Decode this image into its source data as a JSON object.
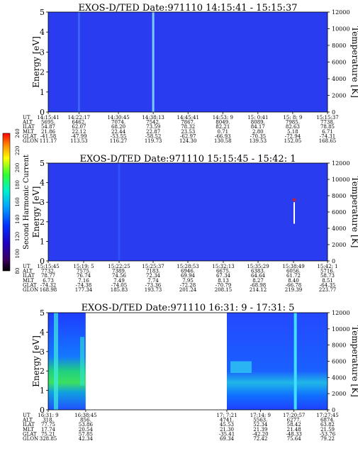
{
  "chart_data": [
    {
      "type": "heatmap",
      "title": "EXOS-D/TED   Date:971110   14:15:41 - 15:15:37",
      "ylabel": "Energy [eV]",
      "ylabel_right": "Temperature [K]",
      "ylim": [
        0,
        5
      ],
      "yticks": [
        "0",
        "1",
        "2",
        "3",
        "4",
        "5"
      ],
      "ylim_right": [
        0,
        12000
      ],
      "yticks_right": [
        "0",
        "2000",
        "4000",
        "6000",
        "8000",
        "10000",
        "12000"
      ],
      "row_labels": [
        "UT",
        "ALT",
        "ILAT",
        "MLT",
        "GLAT",
        "GLON"
      ],
      "columns": [
        [
          "14:15:41",
          "5695.",
          "54.87",
          "21.86",
          "-41.58",
          "111.17"
        ],
        [
          "14:22:17",
          "6462.",
          "62.07",
          "22.12",
          "-47.99",
          "113.53"
        ],
        [
          "14:30:45",
          "7074.",
          "68.20",
          "22.44",
          "-53.55",
          "116.27"
        ],
        [
          "14:38:13",
          "7542.",
          "73.59",
          "22.87",
          "-58.52",
          "119.73"
        ],
        [
          "14:45:41",
          "7867.",
          "78.32",
          "23.53",
          "-62.97",
          "124.30"
        ],
        [
          "14:53: 9",
          "8049.",
          "82.21",
          "0.71",
          "-66.93",
          "130.58"
        ],
        [
          "15: 0:41",
          "8089.",
          "84.17",
          "2.80",
          "-70.35",
          "139.53"
        ],
        [
          "15: 8: 9",
          "7985.",
          "82.63",
          "5.18",
          "-72.94",
          "152.05"
        ],
        [
          "15:15:37",
          "7738.",
          "78.85",
          "6.71",
          "-74.31",
          "168.65"
        ]
      ],
      "features": [
        {
          "kind": "vertical_stripe",
          "ut": "14:38:13",
          "color": "#8ee0ff"
        },
        {
          "kind": "vertical_stripe",
          "ut": "14:22:17",
          "color": "#3f6bff"
        }
      ]
    },
    {
      "type": "heatmap",
      "title": "EXOS-D/TED   Date:971110   15:15:45 - 15:42: 1",
      "ylabel": "Energy [eV]",
      "ylabel_right": "Temperature [K]",
      "ylim": [
        0,
        5
      ],
      "yticks": [
        "0",
        "1",
        "2",
        "3",
        "4",
        "5"
      ],
      "ylim_right": [
        0,
        12000
      ],
      "yticks_right": [
        "0",
        "2000",
        "4000",
        "6000",
        "8000",
        "10000",
        "12000"
      ],
      "row_labels": [
        "UT",
        "ALT",
        "ILAT",
        "MLT",
        "GLAT",
        "GLON"
      ],
      "columns": [
        [
          "15:15:45",
          "7732.",
          "78.77",
          "6.73",
          "-74.32",
          "168.98"
        ],
        [
          "15:19: 5",
          "7575.",
          "76.74",
          "7.16",
          "-74.38",
          "177.34"
        ],
        [
          "15:22:25",
          "7389.",
          "74.56",
          "7.49",
          "-74.05",
          "185.83"
        ],
        [
          "15:25:37",
          "7183.",
          "72.34",
          "7.74",
          "-73.36",
          "193.73"
        ],
        [
          "15:28:53",
          "6946.",
          "69.94",
          "7.95",
          "-72.28",
          "201.24"
        ],
        [
          "15:32:13",
          "6675.",
          "67.34",
          "8.13",
          "-70.79",
          "208.15"
        ],
        [
          "15:35:29",
          "6383.",
          "64.64",
          "8.27",
          "-68.98",
          "214.12"
        ],
        [
          "15:38:49",
          "6056.",
          "61.72",
          "8.40",
          "-66.78",
          "219.39"
        ],
        [
          "15:42: 1",
          "5716.",
          "58.73",
          "8.51",
          "-64.35",
          "223.77"
        ]
      ],
      "features": [
        {
          "kind": "vertical_stripe",
          "ut": "15:22:25",
          "color": "#2f55ff"
        },
        {
          "kind": "spike",
          "ut": "15:38:49",
          "color": "#ffffff"
        }
      ]
    },
    {
      "type": "heatmap",
      "title": "EXOS-D/TED   Date:971110   16:31: 9 - 17:31: 5",
      "ylabel": "Energy [eV]",
      "ylabel_right": "Temperature [K]",
      "ylim": [
        0,
        5
      ],
      "yticks": [
        "0",
        "1",
        "2",
        "3",
        "4",
        "5"
      ],
      "ylim_right": [
        0,
        12000
      ],
      "yticks_right": [
        "0",
        "2000",
        "4000",
        "6000",
        "8000",
        "10000",
        "12000"
      ],
      "row_labels": [
        "UT",
        "ALT",
        "ILAT",
        "MLT",
        "GLAT",
        "GLON"
      ],
      "columns": [
        [
          "16:31: 9",
          "318.",
          "77.75",
          "17.74",
          "75.21",
          "328.85"
        ],
        [
          "16:38:45",
          "856.",
          "53.86",
          "20.54",
          "57.85",
          "42.34"
        ],
        [
          "17: 7:21",
          "4741.",
          "45.53",
          "21.30",
          "-35.41",
          "69.34"
        ],
        [
          "17:14: 9",
          "5563.",
          "52.34",
          "21.39",
          "-42.20",
          "72.42"
        ],
        [
          "17:20:57",
          "6277.",
          "58.42",
          "21.48",
          "-48.33",
          "75.64"
        ],
        [
          "17:27:45",
          "6874.",
          "63.82",
          "21.59",
          "-53.76",
          "79.22"
        ]
      ],
      "data_gap": [
        "16:38:45",
        "17: 7:21"
      ]
    }
  ],
  "colorbar": {
    "label": "Second Harmonic Current",
    "ticks": [
      "80",
      "100",
      "120",
      "140",
      "160",
      "180",
      "200",
      "220",
      "240"
    ],
    "colors": [
      "#000000",
      "#3a0060",
      "#2000c0",
      "#0030ff",
      "#00a0ff",
      "#00f0d0",
      "#30ff30",
      "#ffff00",
      "#ff8000",
      "#ff0000"
    ]
  }
}
